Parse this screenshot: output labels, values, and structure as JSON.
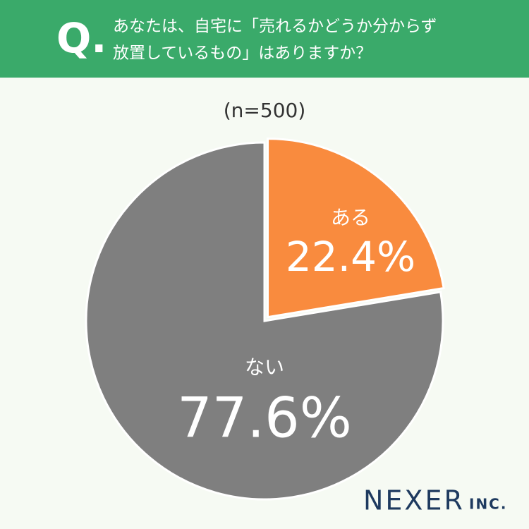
{
  "chart_data": {
    "type": "pie",
    "question_mark": "Q.",
    "title": [
      "あなたは、自宅に「売れるかどうか分からず",
      "放置しているもの」はありますか？"
    ],
    "subtitle": "(n=500)",
    "categories": [
      "ある",
      "ない"
    ],
    "values": [
      22.4,
      77.6
    ],
    "value_labels": [
      "22.4%",
      "77.6%"
    ],
    "colors": [
      "#f98b3e",
      "#7f7f7f"
    ],
    "logo": [
      "NEXER",
      "INC."
    ]
  }
}
